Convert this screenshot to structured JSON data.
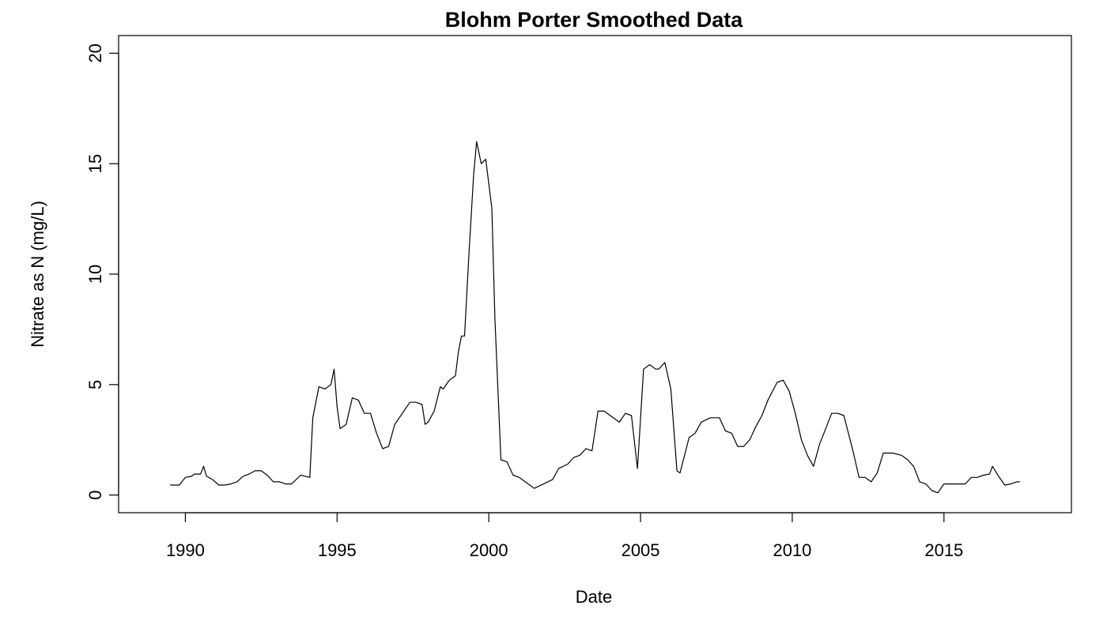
{
  "chart_data": {
    "type": "line",
    "title": "Blohm Porter Smoothed Data",
    "xlabel": "Date",
    "ylabel": "Nitrate as N (mg/L)",
    "xlim": [
      1987.8,
      2019.2
    ],
    "ylim": [
      -0.8,
      20.8
    ],
    "x_ticks": [
      1990,
      1995,
      2000,
      2005,
      2010,
      2015
    ],
    "y_ticks": [
      0,
      5,
      10,
      15,
      20
    ],
    "grid": false,
    "legend": "none",
    "line_color": "#000000",
    "series": [
      {
        "x": [
          1989.5,
          1989.8,
          1990.0,
          1990.2,
          1990.3,
          1990.5,
          1990.6,
          1990.7,
          1990.9,
          1991.1,
          1991.3,
          1991.5,
          1991.7,
          1991.9,
          1992.1,
          1992.3,
          1992.5,
          1992.7,
          1992.9,
          1993.1,
          1993.3,
          1993.5,
          1993.8,
          1994.1,
          1994.2,
          1994.4,
          1994.6,
          1994.8,
          1994.9,
          1995.0,
          1995.1,
          1995.3,
          1995.5,
          1995.7,
          1995.9,
          1996.1,
          1996.3,
          1996.5,
          1996.7,
          1996.9,
          1997.0,
          1997.2,
          1997.4,
          1997.6,
          1997.8,
          1997.9,
          1998.0,
          1998.2,
          1998.4,
          1998.5,
          1998.7,
          1998.9,
          1999.0,
          1999.1,
          1999.2,
          1999.35,
          1999.5,
          1999.6,
          1999.75,
          1999.9,
          2000.1,
          2000.2,
          2000.4,
          2000.6,
          2000.8,
          2001.0,
          2001.2,
          2001.5,
          2001.8,
          2002.1,
          2002.3,
          2002.6,
          2002.8,
          2003.0,
          2003.2,
          2003.4,
          2003.6,
          2003.8,
          2004.0,
          2004.3,
          2004.5,
          2004.7,
          2004.9,
          2005.1,
          2005.3,
          2005.5,
          2005.6,
          2005.8,
          2006.0,
          2006.2,
          2006.3,
          2006.6,
          2006.8,
          2007.0,
          2007.3,
          2007.6,
          2007.8,
          2008.0,
          2008.2,
          2008.4,
          2008.6,
          2008.8,
          2009.0,
          2009.2,
          2009.5,
          2009.7,
          2009.9,
          2010.1,
          2010.3,
          2010.5,
          2010.7,
          2010.9,
          2011.1,
          2011.3,
          2011.5,
          2011.7,
          2012.0,
          2012.2,
          2012.4,
          2012.6,
          2012.8,
          2013.0,
          2013.3,
          2013.6,
          2013.8,
          2014.0,
          2014.2,
          2014.4,
          2014.6,
          2014.8,
          2015.0,
          2015.3,
          2015.5,
          2015.7,
          2015.9,
          2016.1,
          2016.3,
          2016.5,
          2016.6,
          2016.8,
          2017.0,
          2017.2,
          2017.4,
          2017.5
        ],
        "y": [
          0.45,
          0.45,
          0.8,
          0.85,
          0.95,
          0.95,
          1.3,
          0.85,
          0.7,
          0.45,
          0.45,
          0.5,
          0.6,
          0.85,
          0.95,
          1.1,
          1.1,
          0.9,
          0.6,
          0.6,
          0.5,
          0.5,
          0.9,
          0.8,
          3.5,
          4.9,
          4.8,
          5.0,
          5.7,
          4.0,
          3.0,
          3.2,
          4.4,
          4.3,
          3.7,
          3.7,
          2.8,
          2.1,
          2.2,
          3.2,
          3.4,
          3.8,
          4.2,
          4.2,
          4.1,
          3.2,
          3.3,
          3.8,
          4.9,
          4.8,
          5.2,
          5.4,
          6.5,
          7.2,
          7.2,
          11.0,
          14.5,
          16.0,
          15.0,
          15.2,
          13.0,
          8.0,
          1.6,
          1.5,
          0.9,
          0.8,
          0.6,
          0.3,
          0.5,
          0.7,
          1.2,
          1.4,
          1.7,
          1.8,
          2.1,
          2.0,
          3.8,
          3.8,
          3.6,
          3.3,
          3.7,
          3.6,
          1.2,
          5.7,
          5.9,
          5.7,
          5.7,
          6.0,
          4.8,
          1.1,
          1.0,
          2.6,
          2.8,
          3.3,
          3.5,
          3.5,
          2.9,
          2.8,
          2.2,
          2.2,
          2.5,
          3.1,
          3.6,
          4.3,
          5.1,
          5.2,
          4.7,
          3.7,
          2.5,
          1.8,
          1.3,
          2.3,
          3.0,
          3.7,
          3.7,
          3.6,
          2.0,
          0.8,
          0.8,
          0.6,
          1.0,
          1.9,
          1.9,
          1.8,
          1.6,
          1.3,
          0.6,
          0.5,
          0.2,
          0.1,
          0.5,
          0.5,
          0.5,
          0.5,
          0.8,
          0.8,
          0.9,
          0.95,
          1.3,
          0.85,
          0.45,
          0.5,
          0.6,
          0.6
        ]
      }
    ]
  }
}
